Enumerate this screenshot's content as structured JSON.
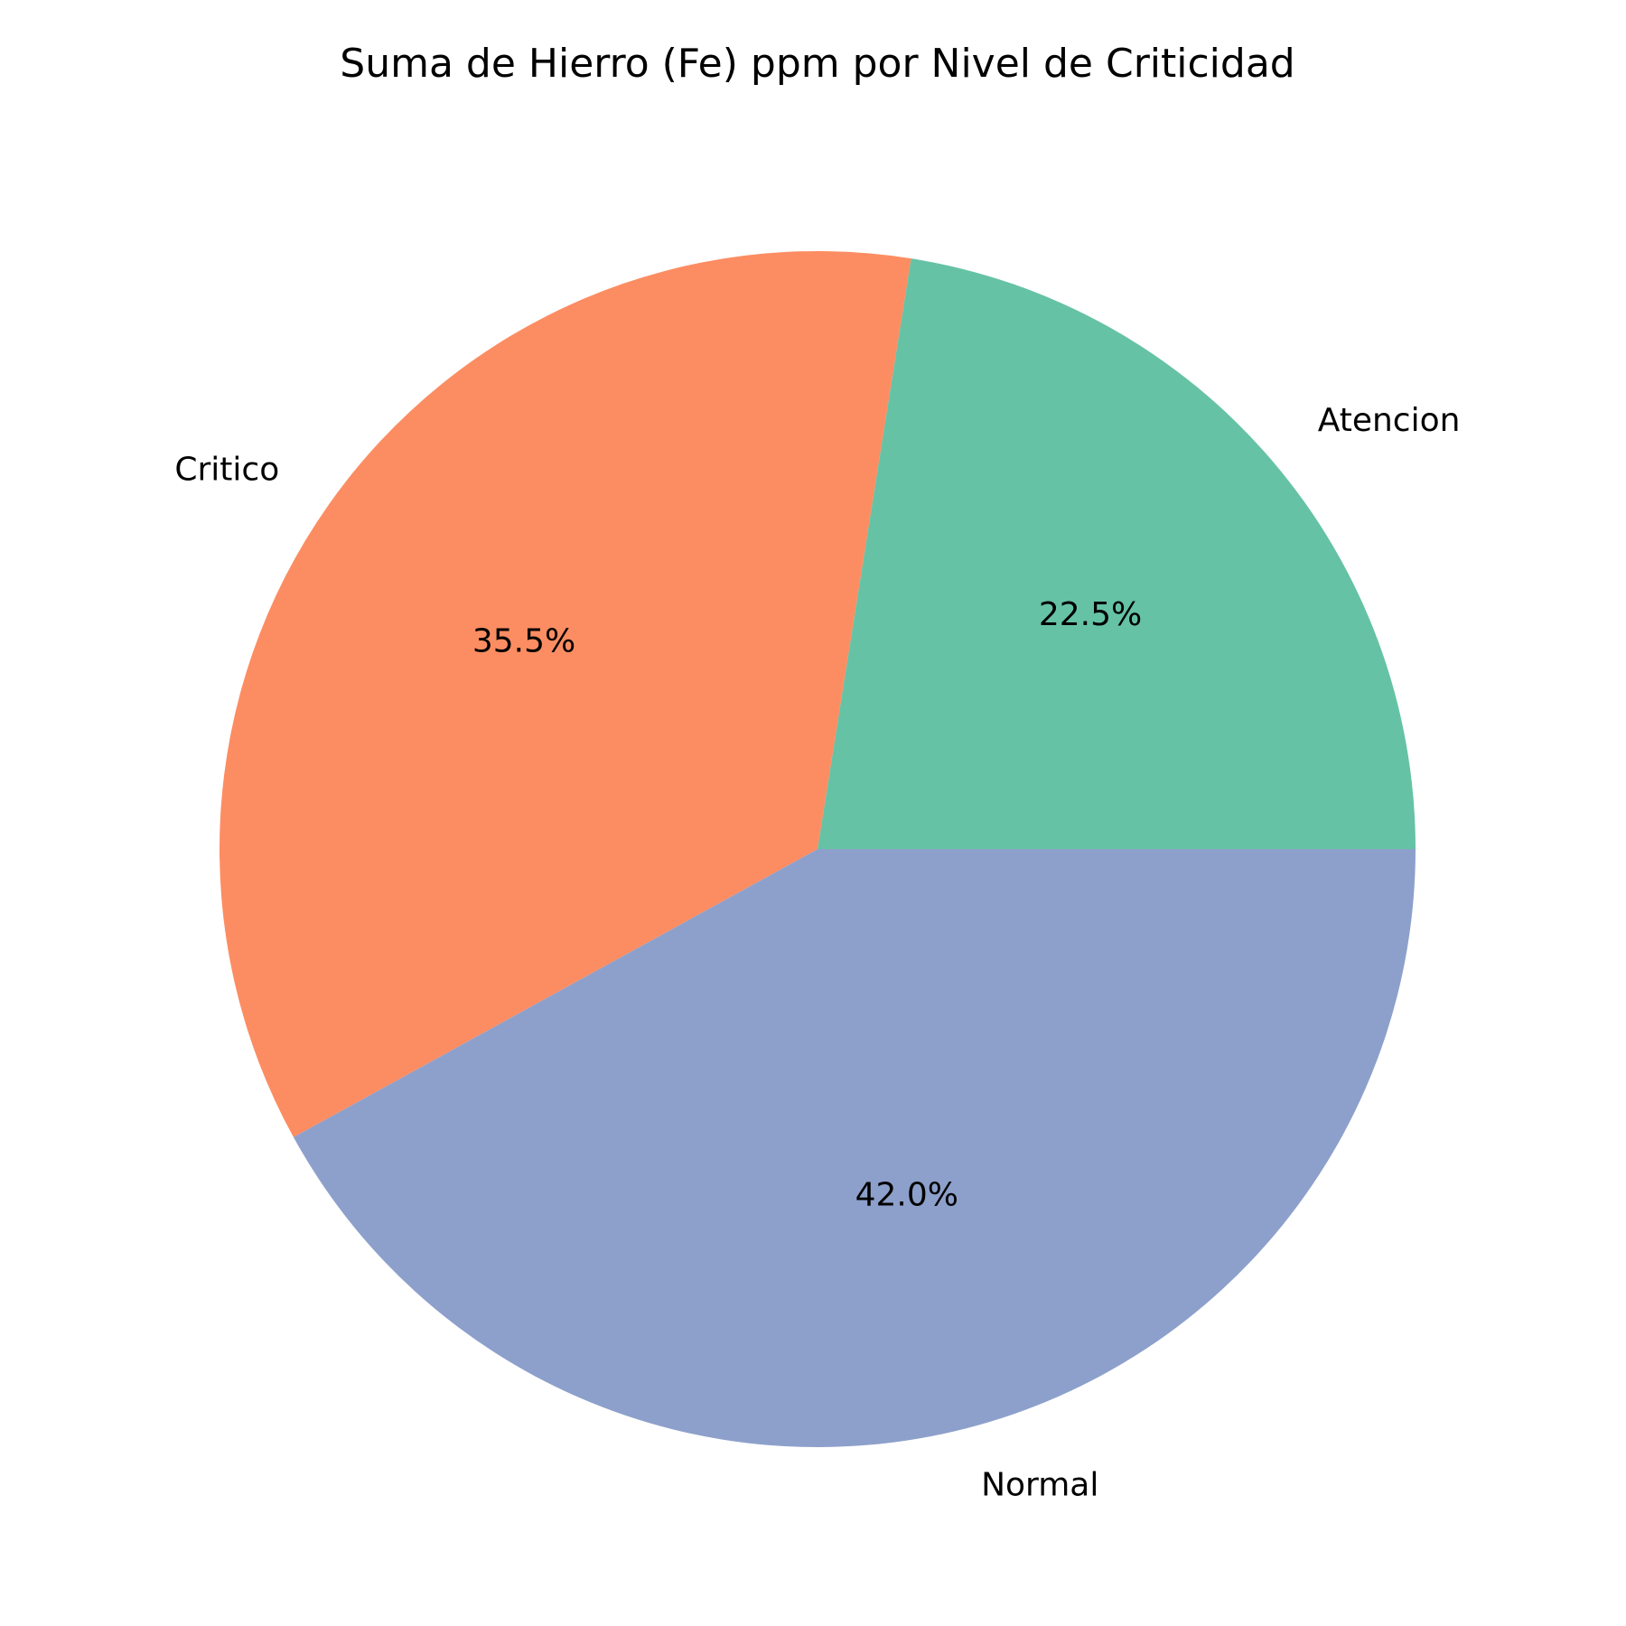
{
  "chart_data": {
    "type": "pie",
    "title": "Suma de Hierro (Fe) ppm por Nivel de Criticidad",
    "start_angle_deg": 0,
    "direction": "counterclockwise",
    "slices": [
      {
        "label": "Atencion",
        "percent": 22.5,
        "pct_label": "22.5%",
        "color": "#66c2a5"
      },
      {
        "label": "Critico",
        "percent": 35.5,
        "pct_label": "35.5%",
        "color": "#fc8d62"
      },
      {
        "label": "Normal",
        "percent": 42.0,
        "pct_label": "42.0%",
        "color": "#8da0cb"
      }
    ]
  }
}
